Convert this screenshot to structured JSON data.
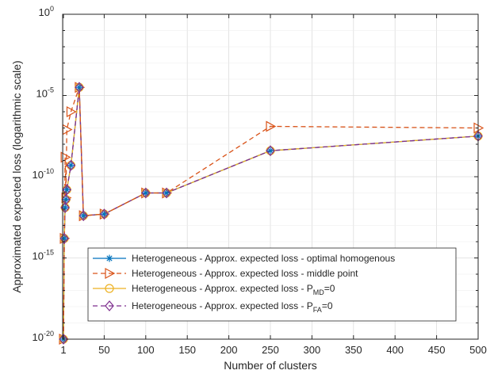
{
  "chart_data": {
    "type": "line",
    "xlabel": "Number of clusters",
    "ylabel": "Approximated expected loss (logarithmic scale)",
    "xlim": [
      0,
      500
    ],
    "ylim_log10": [
      -20,
      0
    ],
    "yscale": "log",
    "grid": true,
    "legend_position": "lower-right",
    "x_ticks": [
      {
        "value": 1,
        "label": "1"
      },
      {
        "value": 50,
        "label": "50"
      },
      {
        "value": 100,
        "label": "100"
      },
      {
        "value": 150,
        "label": "150"
      },
      {
        "value": 200,
        "label": "200"
      },
      {
        "value": 250,
        "label": "250"
      },
      {
        "value": 300,
        "label": "300"
      },
      {
        "value": 350,
        "label": "350"
      },
      {
        "value": 400,
        "label": "400"
      },
      {
        "value": 450,
        "label": "450"
      },
      {
        "value": 500,
        "label": "500"
      }
    ],
    "y_ticks": [
      {
        "exp": -20,
        "base": "10",
        "sup": "-20"
      },
      {
        "exp": -15,
        "base": "10",
        "sup": "-15"
      },
      {
        "exp": -10,
        "base": "10",
        "sup": "-10"
      },
      {
        "exp": -5,
        "base": "10",
        "sup": "-5"
      },
      {
        "exp": 0,
        "base": "10",
        "sup": "0"
      }
    ],
    "x": [
      1,
      2,
      3,
      4,
      5,
      10,
      20,
      25,
      50,
      100,
      125,
      250,
      500
    ],
    "series": [
      {
        "key": "optimal",
        "name": "Heterogeneous - Approx. expected loss - optimal homogenous",
        "color": "#0072BD",
        "dash": "",
        "marker": "star",
        "log10_y": [
          -20.0,
          -13.8,
          -11.9,
          -11.4,
          -10.8,
          -9.3,
          -4.5,
          -12.4,
          -12.3,
          -11.0,
          -11.0,
          -8.4,
          -7.5
        ]
      },
      {
        "key": "middle",
        "name": "Heterogeneous - Approx. expected loss - middle point",
        "color": "#D95319",
        "dash": "6,4",
        "marker": "triangle-right",
        "log10_y": [
          -20.0,
          -13.8,
          -8.8,
          -11.3,
          -7.1,
          -6.0,
          -4.5,
          -12.4,
          -12.3,
          -11.0,
          -11.0,
          -6.9,
          -7.0
        ]
      },
      {
        "key": "pmd",
        "name": "Heterogeneous - Approx. expected loss - P_MD=0",
        "label_main": "Heterogeneous - Approx. expected loss - P",
        "label_sub": "MD",
        "label_tail": "=0",
        "color": "#EDB120",
        "dash": "",
        "marker": "circle",
        "log10_y": [
          -20.0,
          -13.8,
          -11.9,
          -11.4,
          -10.8,
          -9.3,
          -4.5,
          -12.4,
          -12.3,
          -11.0,
          -11.0,
          -8.4,
          -7.5
        ]
      },
      {
        "key": "pfa",
        "name": "Heterogeneous - Approx. expected loss - P_FA=0",
        "label_main": "Heterogeneous - Approx. expected loss - P",
        "label_sub": "FA",
        "label_tail": "=0",
        "color": "#7E2F8E",
        "dash": "6,4",
        "marker": "diamond",
        "log10_y": [
          -20.0,
          -13.8,
          -11.9,
          -11.4,
          -10.8,
          -9.3,
          -4.5,
          -12.4,
          -12.3,
          -11.0,
          -11.0,
          -8.4,
          -7.5
        ]
      }
    ]
  }
}
